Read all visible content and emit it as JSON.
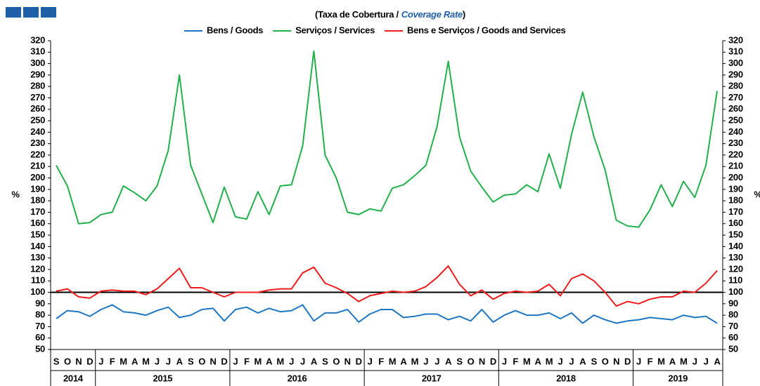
{
  "chart_data": {
    "type": "line",
    "title": "(Taxa de Cobertura  /",
    "title_highlight": "Coverage Rate",
    "title_end": ")",
    "y_label": "%",
    "y2_label": "%",
    "categories": [
      "S",
      "O",
      "N",
      "D",
      "J",
      "F",
      "M",
      "A",
      "M",
      "J",
      "J",
      "A",
      "S",
      "O",
      "N",
      "D",
      "J",
      "F",
      "M",
      "A",
      "M",
      "J",
      "J",
      "A",
      "S",
      "O",
      "N",
      "D",
      "J",
      "F",
      "M",
      "A",
      "M",
      "J",
      "J",
      "A",
      "S",
      "O",
      "N",
      "D",
      "J",
      "F",
      "M",
      "A",
      "M",
      "J",
      "J",
      "A",
      "S",
      "O",
      "N",
      "D",
      "J",
      "F",
      "M",
      "A",
      "M",
      "J",
      "J",
      "A"
    ],
    "years": [
      "2014",
      "2015",
      "2016",
      "2017",
      "2018",
      "2019"
    ],
    "series": [
      {
        "name": "Bens / Goods",
        "color": "#1f77c4",
        "values": [
          77,
          84,
          83,
          79,
          85,
          89,
          83,
          82,
          80,
          84,
          87,
          78,
          80,
          85,
          86,
          75,
          85,
          87,
          82,
          86,
          83,
          84,
          89,
          75,
          82,
          82,
          85,
          74,
          81,
          85,
          85,
          78,
          79,
          81,
          81,
          76,
          79,
          75,
          85,
          74,
          80,
          84,
          80,
          80,
          82,
          77,
          82,
          73,
          80,
          76,
          73,
          75,
          76,
          78,
          77,
          76,
          80,
          78,
          79,
          73
        ]
      },
      {
        "name": "Serviços / Services",
        "color": "#22b04b",
        "values": [
          211,
          193,
          160,
          161,
          168,
          170,
          193,
          187,
          180,
          193,
          224,
          290,
          211,
          186,
          161,
          192,
          166,
          164,
          188,
          168,
          193,
          194,
          228,
          311,
          220,
          200,
          170,
          168,
          173,
          171,
          191,
          194,
          202,
          211,
          245,
          302,
          236,
          206,
          192,
          179,
          185,
          186,
          194,
          188,
          221,
          191,
          238,
          275,
          236,
          207,
          163,
          158,
          157,
          172,
          194,
          175,
          197,
          183,
          211,
          276
        ]
      },
      {
        "name": "Bens e Serviços / Goods and Services",
        "color": "#ee1c1c",
        "values": [
          101,
          103,
          96,
          95,
          101,
          102,
          101,
          101,
          98,
          103,
          112,
          121,
          104,
          104,
          100,
          96,
          100,
          100,
          100,
          102,
          103,
          103,
          117,
          122,
          108,
          104,
          99,
          92,
          97,
          99,
          101,
          100,
          101,
          105,
          113,
          123,
          107,
          97,
          102,
          94,
          99,
          101,
          100,
          101,
          107,
          97,
          112,
          116,
          110,
          100,
          88,
          92,
          90,
          94,
          96,
          96,
          101,
          100,
          108,
          119
        ]
      }
    ],
    "reference_line": 100,
    "ylim": [
      50,
      320
    ],
    "yticks": [
      50,
      60,
      70,
      80,
      90,
      100,
      110,
      120,
      130,
      140,
      150,
      160,
      170,
      180,
      190,
      200,
      210,
      220,
      230,
      240,
      250,
      260,
      270,
      280,
      290,
      300,
      310,
      320
    ],
    "y2lim": [
      50,
      320
    ],
    "y2ticks": [
      50,
      60,
      70,
      80,
      90,
      100,
      110,
      120,
      130,
      140,
      150,
      160,
      170,
      180,
      190,
      200,
      210,
      220,
      230,
      240,
      250,
      260,
      270,
      280,
      290,
      300,
      310,
      320
    ]
  }
}
